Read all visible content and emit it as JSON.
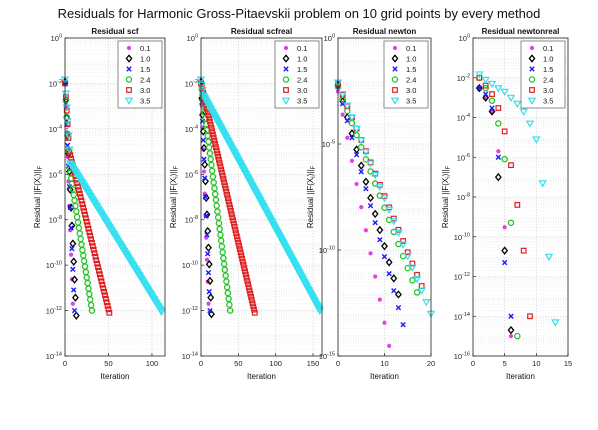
{
  "figure": {
    "suptitle": "Residuals for Harmonic Gross-Pitaevskii  problem on 10 grid points by every method"
  },
  "chart_data": [
    {
      "type": "scatter",
      "title": "Residual scf",
      "xlabel": "Iteration",
      "ylabel": "Residual ||F(X_i)||_F",
      "yscale": "log",
      "xlim": [
        0,
        115
      ],
      "ylim": [
        1e-14,
        1
      ],
      "xticks": [
        0,
        50,
        100
      ],
      "yticks": [
        "10^-14",
        "10^-12",
        "10^-10",
        "10^-8",
        "10^-6",
        "10^-4",
        "10^-2",
        "10^0"
      ],
      "grid": true,
      "legend": "top-right",
      "series": [
        {
          "name": "0.1",
          "marker": "dot",
          "color": "#e63ee6",
          "kind": "decay",
          "y0": 0.01,
          "yend": 2e-12,
          "n": 10
        },
        {
          "name": "1.0",
          "marker": "diamond",
          "color": "#000000",
          "kind": "decay",
          "y0": 0.012,
          "yend": 6e-13,
          "n": 14
        },
        {
          "name": "1.5",
          "marker": "x",
          "color": "#1a1aff",
          "kind": "decay",
          "y0": 0.01,
          "yend": 1e-12,
          "n": 12
        },
        {
          "name": "2.4",
          "marker": "circle",
          "color": "#22c422",
          "kind": "twophase",
          "y0": 0.01,
          "ybreak": 2e-06,
          "nbreak": 5,
          "yend": 1e-12,
          "n": 32
        },
        {
          "name": "3.0",
          "marker": "square",
          "color": "#e02020",
          "kind": "twophase",
          "y0": 0.01,
          "ybreak": 1e-05,
          "nbreak": 5,
          "yend": 8e-13,
          "n": 52
        },
        {
          "name": "3.5",
          "marker": "triangle",
          "color": "#33e0f0",
          "kind": "twophase",
          "y0": 0.015,
          "ybreak": 3e-06,
          "nbreak": 6,
          "yend": 9e-13,
          "n": 112
        }
      ]
    },
    {
      "type": "scatter",
      "title": "Residual scfreal",
      "xlabel": "Iteration",
      "ylabel": "Residual ||F(X_i)||_F",
      "yscale": "log",
      "xlim": [
        0,
        162
      ],
      "ylim": [
        1e-14,
        1
      ],
      "xticks": [
        0,
        50,
        100,
        150
      ],
      "yticks": [
        "10^-14",
        "10^-12",
        "10^-10",
        "10^-8",
        "10^-6",
        "10^-4",
        "10^-2",
        "10^0"
      ],
      "grid": true,
      "legend": "top-right",
      "series": [
        {
          "name": "0.1",
          "marker": "dot",
          "color": "#e63ee6",
          "kind": "decay",
          "y0": 0.01,
          "yend": 2e-12,
          "n": 11
        },
        {
          "name": "1.0",
          "marker": "diamond",
          "color": "#000000",
          "kind": "decay",
          "y0": 0.012,
          "yend": 7e-13,
          "n": 15
        },
        {
          "name": "1.5",
          "marker": "x",
          "color": "#1a1aff",
          "kind": "decay",
          "y0": 0.01,
          "yend": 1e-12,
          "n": 13
        },
        {
          "name": "2.4",
          "marker": "circle",
          "color": "#22c422",
          "kind": "decay",
          "y0": 0.01,
          "yend": 1e-12,
          "n": 40
        },
        {
          "name": "3.0",
          "marker": "square",
          "color": "#e02020",
          "kind": "decay",
          "y0": 0.01,
          "yend": 8e-13,
          "n": 73
        },
        {
          "name": "3.5",
          "marker": "triangle",
          "color": "#33e0f0",
          "kind": "twophase",
          "y0": 0.015,
          "ybreak": 0.003,
          "nbreak": 3,
          "yend": 1e-12,
          "n": 160
        }
      ]
    },
    {
      "type": "scatter",
      "title": "Residual newton",
      "xlabel": "Iteration",
      "ylabel": "Residual ||F(X_i)||_F",
      "yscale": "log",
      "xlim": [
        0,
        20
      ],
      "ylim": [
        1e-15,
        1
      ],
      "xticks": [
        0,
        10,
        20
      ],
      "yticks": [
        "10^-15",
        "10^-10",
        "10^-5",
        "10^0"
      ],
      "grid": true,
      "legend": "top-right",
      "series": [
        {
          "name": "0.1",
          "marker": "dot",
          "color": "#e63ee6",
          "kind": "decay",
          "y0": 0.003,
          "yend": 3e-15,
          "n": 12
        },
        {
          "name": "1.0",
          "marker": "diamond",
          "color": "#000000",
          "kind": "decay",
          "y0": 0.006,
          "yend": 8e-13,
          "n": 14
        },
        {
          "name": "1.5",
          "marker": "x",
          "color": "#1a1aff",
          "kind": "decay",
          "y0": 0.005,
          "yend": 3e-14,
          "n": 15
        },
        {
          "name": "2.4",
          "marker": "circle",
          "color": "#22c422",
          "kind": "decay",
          "y0": 0.005,
          "yend": 1e-12,
          "n": 18
        },
        {
          "name": "3.0",
          "marker": "square",
          "color": "#e02020",
          "kind": "decay",
          "y0": 0.007,
          "yend": 2e-12,
          "n": 19
        },
        {
          "name": "3.5",
          "marker": "triangle",
          "color": "#33e0f0",
          "kind": "decay",
          "y0": 0.008,
          "yend": 1e-13,
          "n": 21
        }
      ]
    },
    {
      "type": "scatter",
      "title": "Residual newtonreal",
      "xlabel": "Iteration",
      "ylabel": "Residual ||F(X_i)||_F",
      "yscale": "log",
      "xlim": [
        0,
        15
      ],
      "ylim": [
        1e-16,
        1
      ],
      "xticks": [
        0,
        5,
        10,
        15
      ],
      "yticks": [
        "10^-16",
        "10^-14",
        "10^-12",
        "10^-10",
        "10^-8",
        "10^-6",
        "10^-4",
        "10^-2",
        "10^0"
      ],
      "grid": true,
      "legend": "top-right",
      "series": [
        {
          "name": "0.1",
          "marker": "dot",
          "color": "#e63ee6",
          "kind": "points",
          "x": [
            1,
            2,
            3,
            4,
            5,
            6
          ],
          "y": [
            0.003,
            0.001,
            0.0002,
            2e-06,
            3e-10,
            1e-15
          ]
        },
        {
          "name": "1.0",
          "marker": "diamond",
          "color": "#000000",
          "kind": "points",
          "x": [
            1,
            2,
            3,
            4,
            5,
            6
          ],
          "y": [
            0.003,
            0.001,
            0.0002,
            1e-07,
            2e-11,
            2e-15
          ]
        },
        {
          "name": "1.5",
          "marker": "x",
          "color": "#1a1aff",
          "kind": "points",
          "x": [
            1,
            2,
            3,
            4,
            5,
            6
          ],
          "y": [
            0.003,
            0.0015,
            0.0003,
            1e-06,
            5e-12,
            1e-14
          ]
        },
        {
          "name": "2.4",
          "marker": "circle",
          "color": "#22c422",
          "kind": "points",
          "x": [
            1,
            2,
            3,
            4,
            5,
            6,
            7
          ],
          "y": [
            0.01,
            0.003,
            0.0007,
            5e-05,
            8e-07,
            5e-10,
            1e-15
          ]
        },
        {
          "name": "3.0",
          "marker": "square",
          "color": "#e02020",
          "kind": "points",
          "x": [
            1,
            2,
            3,
            4,
            5,
            6,
            7,
            8,
            9
          ],
          "y": [
            0.01,
            0.004,
            0.0015,
            0.0003,
            2e-05,
            4e-07,
            4e-09,
            2e-11,
            1e-14
          ]
        },
        {
          "name": "3.5",
          "marker": "triangle",
          "color": "#33e0f0",
          "kind": "points",
          "x": [
            1,
            2,
            3,
            4,
            5,
            6,
            7,
            8,
            9,
            10,
            11,
            12,
            13
          ],
          "y": [
            0.015,
            0.008,
            0.005,
            0.003,
            0.002,
            0.001,
            0.0005,
            0.0002,
            5e-05,
            8e-06,
            5e-08,
            1e-11,
            5e-15
          ]
        }
      ]
    }
  ]
}
